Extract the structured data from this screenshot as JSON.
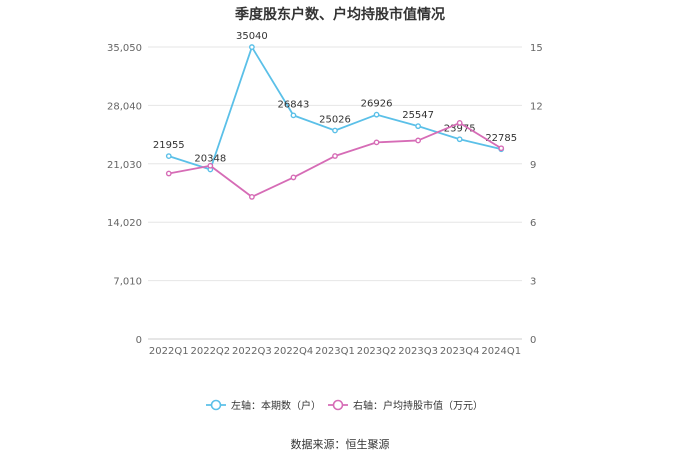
{
  "title": "季度股东户数、户均持股市值情况",
  "source_text": "数据来源：恒生聚源",
  "legend": [
    {
      "label": "左轴：本期数（户）",
      "color": "#5bc0e8"
    },
    {
      "label": "右轴：户均持股市值（万元）",
      "color": "#d66cb6"
    }
  ],
  "chart_data": {
    "type": "line",
    "categories": [
      "2022Q1",
      "2022Q2",
      "2022Q3",
      "2022Q4",
      "2023Q1",
      "2023Q2",
      "2023Q3",
      "2023Q4",
      "2024Q1"
    ],
    "series": [
      {
        "name": "左轴：本期数（户）",
        "axis": "left",
        "color": "#5bc0e8",
        "values": [
          21955,
          20348,
          35040,
          26843,
          25026,
          26926,
          25547,
          23975,
          22785
        ],
        "data_labels": [
          "21955",
          "20348",
          "35040",
          "26843",
          "25026",
          "26926",
          "25547",
          "23975",
          "22785"
        ]
      },
      {
        "name": "右轴：户均持股市值（万元）",
        "axis": "right",
        "color": "#d66cb6",
        "values": [
          8.5,
          8.9,
          7.3,
          8.3,
          9.4,
          10.1,
          10.2,
          11.1,
          9.8
        ]
      }
    ],
    "y_left": {
      "ylim": [
        0,
        35050
      ],
      "ticks": [
        0,
        7010,
        14020,
        21030,
        28040,
        35050
      ],
      "tick_labels": [
        "0",
        "7,010",
        "14,020",
        "21,030",
        "28,040",
        "35,050"
      ]
    },
    "y_right": {
      "ylim": [
        0,
        15
      ],
      "ticks": [
        0,
        3,
        6,
        9,
        12,
        15
      ],
      "tick_labels": [
        "0",
        "3",
        "6",
        "9",
        "12",
        "15"
      ]
    },
    "grid": true,
    "legend_position": "bottom"
  }
}
